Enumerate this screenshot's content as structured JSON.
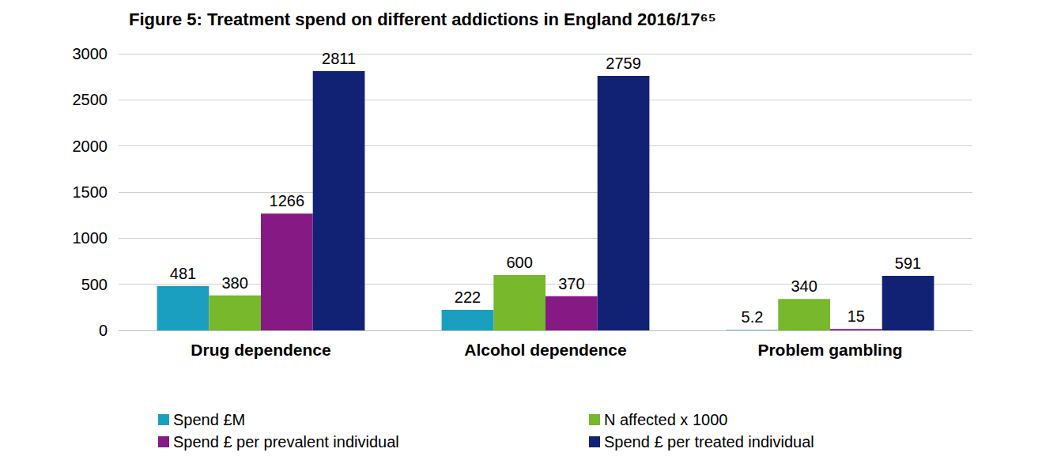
{
  "chart_data": {
    "type": "bar",
    "title": "Figure 5: Treatment spend on different addictions in England 2016/17⁶⁵",
    "categories": [
      "Drug dependence",
      "Alcohol dependence",
      "Problem gambling"
    ],
    "series": [
      {
        "name": "Spend £M",
        "color": "#1a9fc1",
        "values": [
          481,
          222,
          5.2
        ]
      },
      {
        "name": "N affected x 1000",
        "color": "#77b82c",
        "values": [
          380,
          600,
          340
        ]
      },
      {
        "name": "Spend £ per prevalent individual",
        "color": "#861a84",
        "values": [
          1266,
          370,
          15
        ]
      },
      {
        "name": "Spend £ per treated individual",
        "color": "#112275",
        "values": [
          2811,
          2759,
          591
        ]
      }
    ],
    "ylim": [
      0,
      3000
    ],
    "yticks": [
      0,
      500,
      1000,
      1500,
      2000,
      2500,
      3000
    ],
    "grid": true,
    "data_labels": true,
    "legend": "bottom"
  }
}
